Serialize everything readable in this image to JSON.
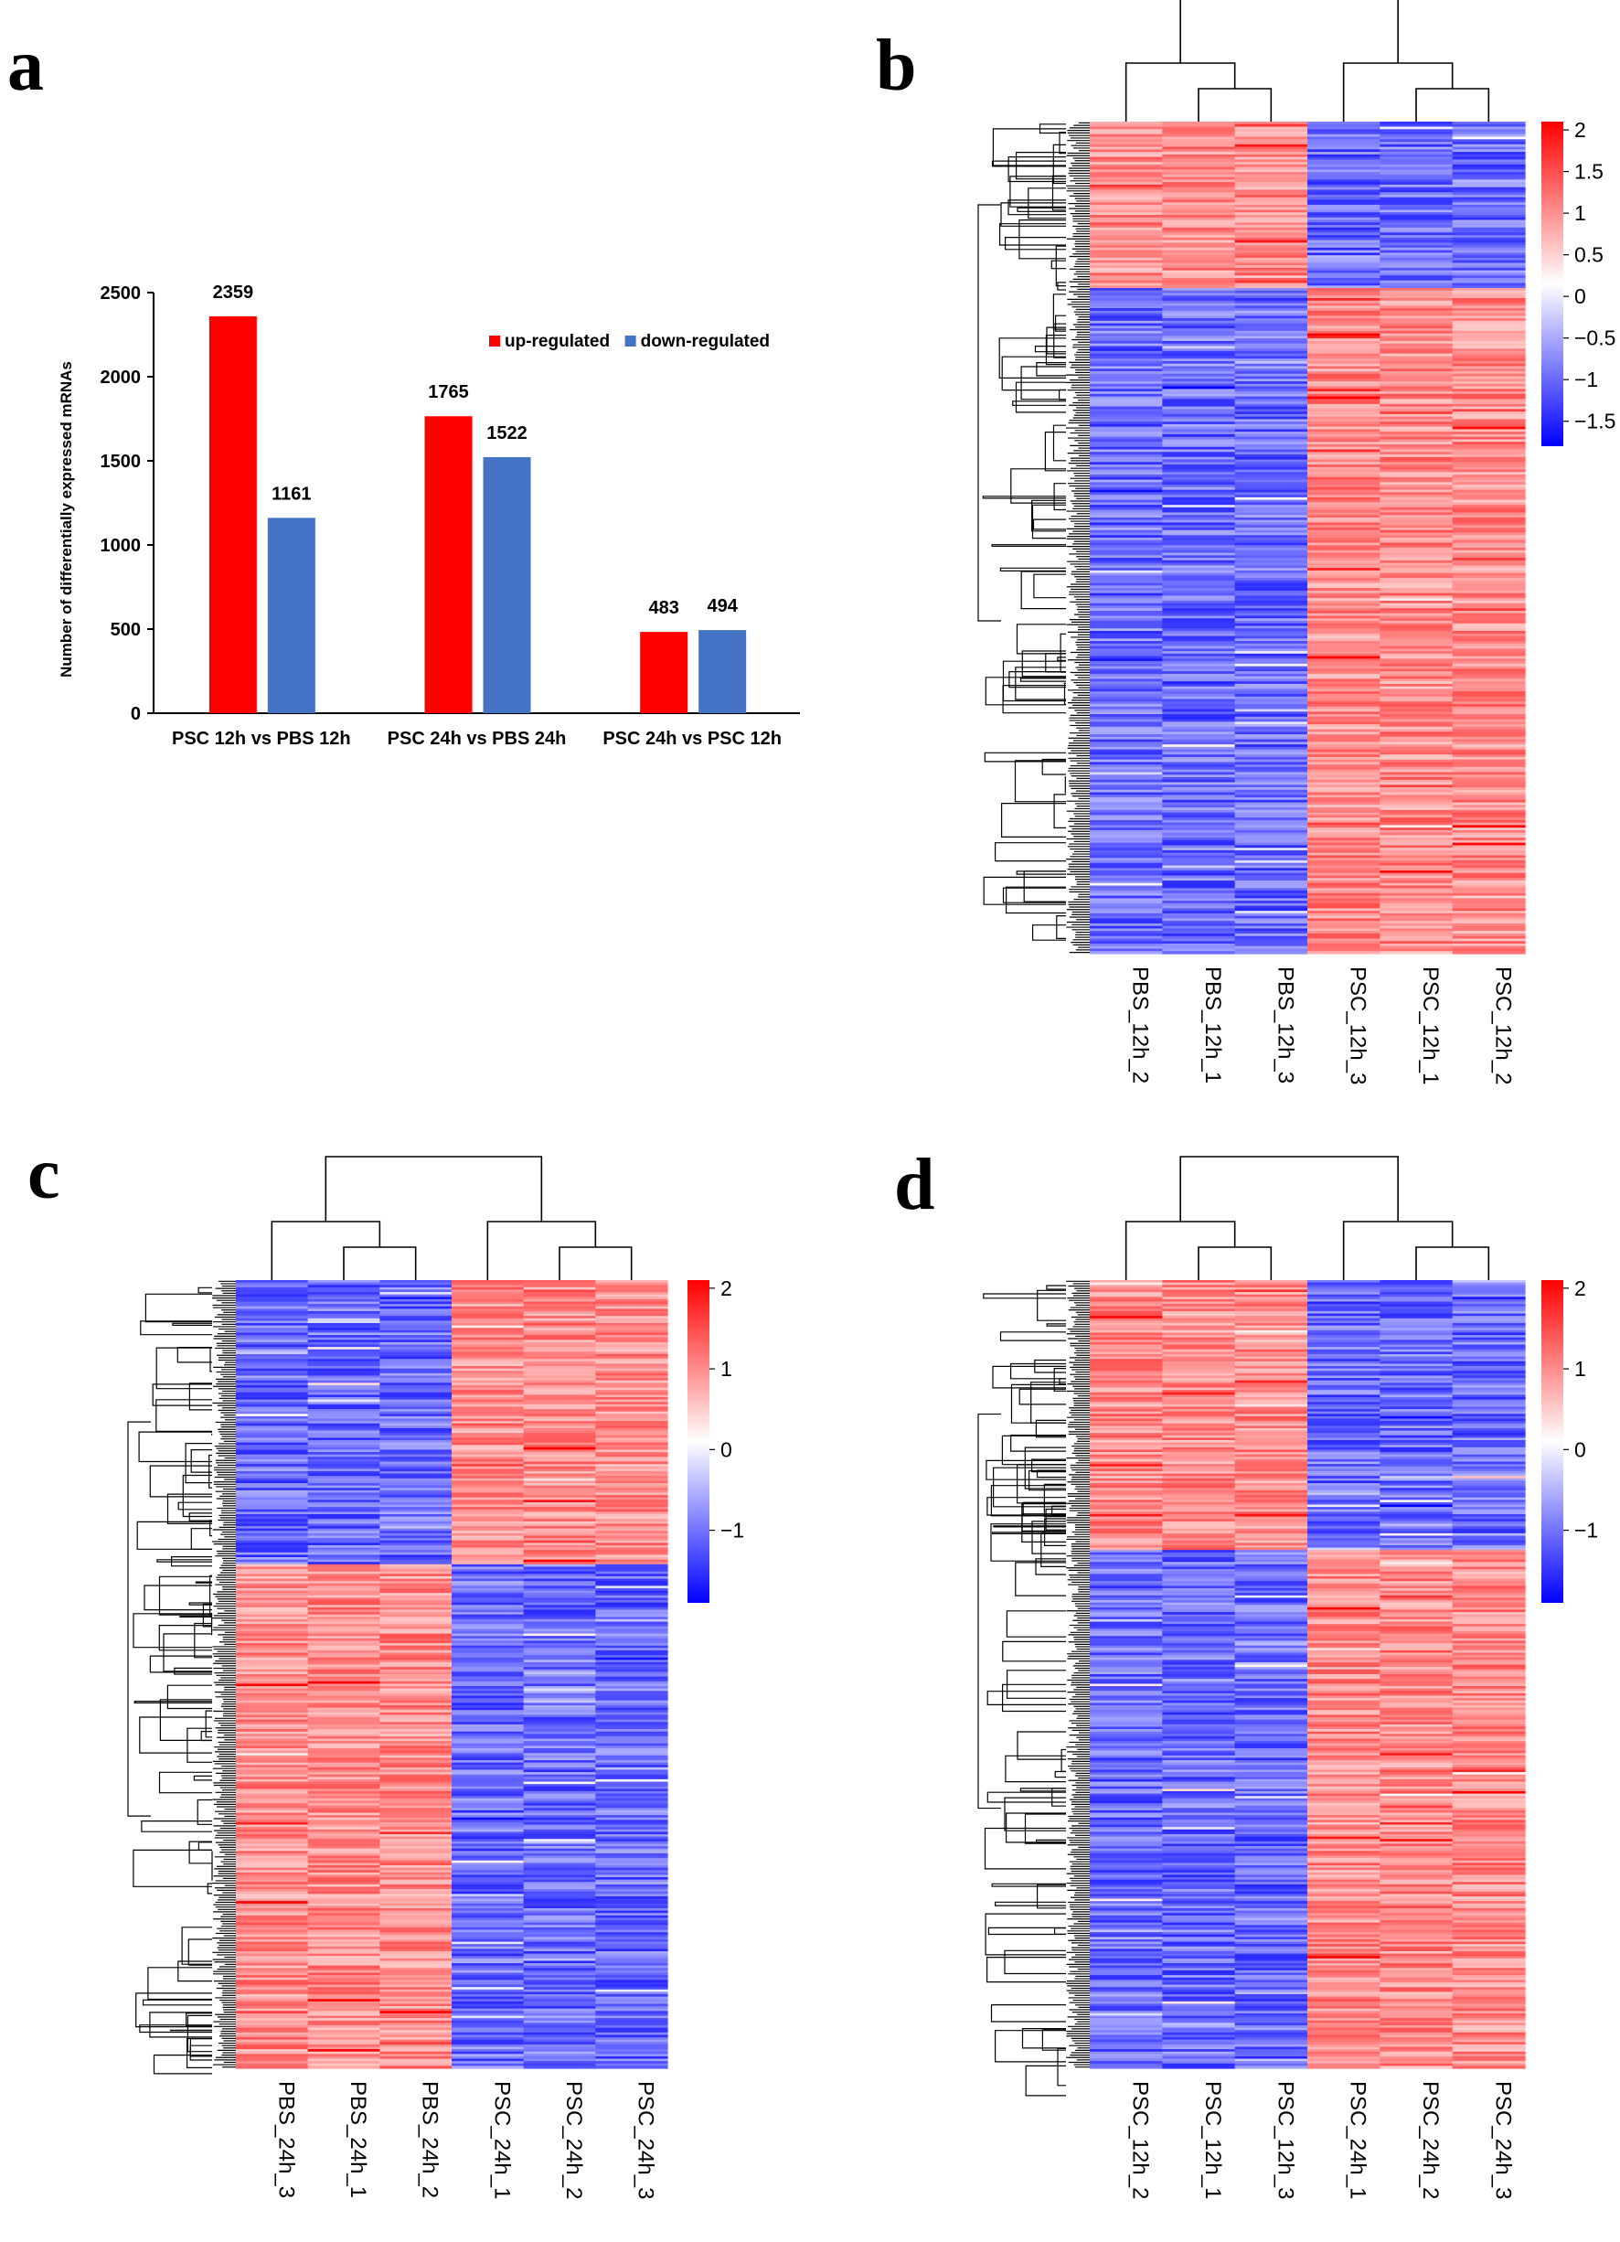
{
  "colors": {
    "up": "#ff0000",
    "down": "#4472c4",
    "hm_high": "#ff0000",
    "hm_mid": "#ffffff",
    "hm_low": "#0000ff"
  },
  "chart_data": [
    {
      "panel": "a",
      "type": "bar",
      "ylabel": "Number of differentially expressed mRNAs",
      "ylim": [
        0,
        2500
      ],
      "yticks": [
        0,
        500,
        1000,
        1500,
        2000,
        2500
      ],
      "categories": [
        "PSC 12h vs PBS 12h",
        "PSC 24h vs PBS 24h",
        "PSC 24h vs PSC 12h"
      ],
      "series": [
        {
          "name": "up-regulated",
          "values": [
            2359,
            1765,
            483
          ]
        },
        {
          "name": "down-regulated",
          "values": [
            1161,
            1522,
            494
          ]
        }
      ],
      "legend": "top-right"
    },
    {
      "panel": "b",
      "type": "heatmap",
      "samples": [
        "PBS_12h_2",
        "PBS_12h_1",
        "PBS_12h_3",
        "PSC_12h_3",
        "PSC_12h_1",
        "PSC_12h_2"
      ],
      "scale_ticks": [
        "2",
        "1.5",
        "1",
        "0.5",
        "0",
        "−0.5",
        "−1",
        "−1.5"
      ],
      "scale_range": [
        -1.8,
        2.1
      ],
      "pattern": "first three samples high then low; last three low then high"
    },
    {
      "panel": "c",
      "type": "heatmap",
      "samples": [
        "PBS_24h_3",
        "PBS_24h_1",
        "PBS_24h_2",
        "PSC_24h_1",
        "PSC_24h_2",
        "PSC_24h_3"
      ],
      "scale_ticks": [
        "2",
        "1",
        "0",
        "−1"
      ],
      "scale_range": [
        -1.9,
        2.1
      ],
      "pattern": "first three samples low then high; last three high then low"
    },
    {
      "panel": "d",
      "type": "heatmap",
      "samples": [
        "PSC_12h_2",
        "PSC_12h_1",
        "PSC_12h_3",
        "PSC_24h_1",
        "PSC_24h_2",
        "PSC_24h_3"
      ],
      "scale_ticks": [
        "2",
        "1",
        "0",
        "−1"
      ],
      "scale_range": [
        -1.9,
        2.1
      ],
      "pattern": "first three samples high then low; last three low then high"
    }
  ]
}
